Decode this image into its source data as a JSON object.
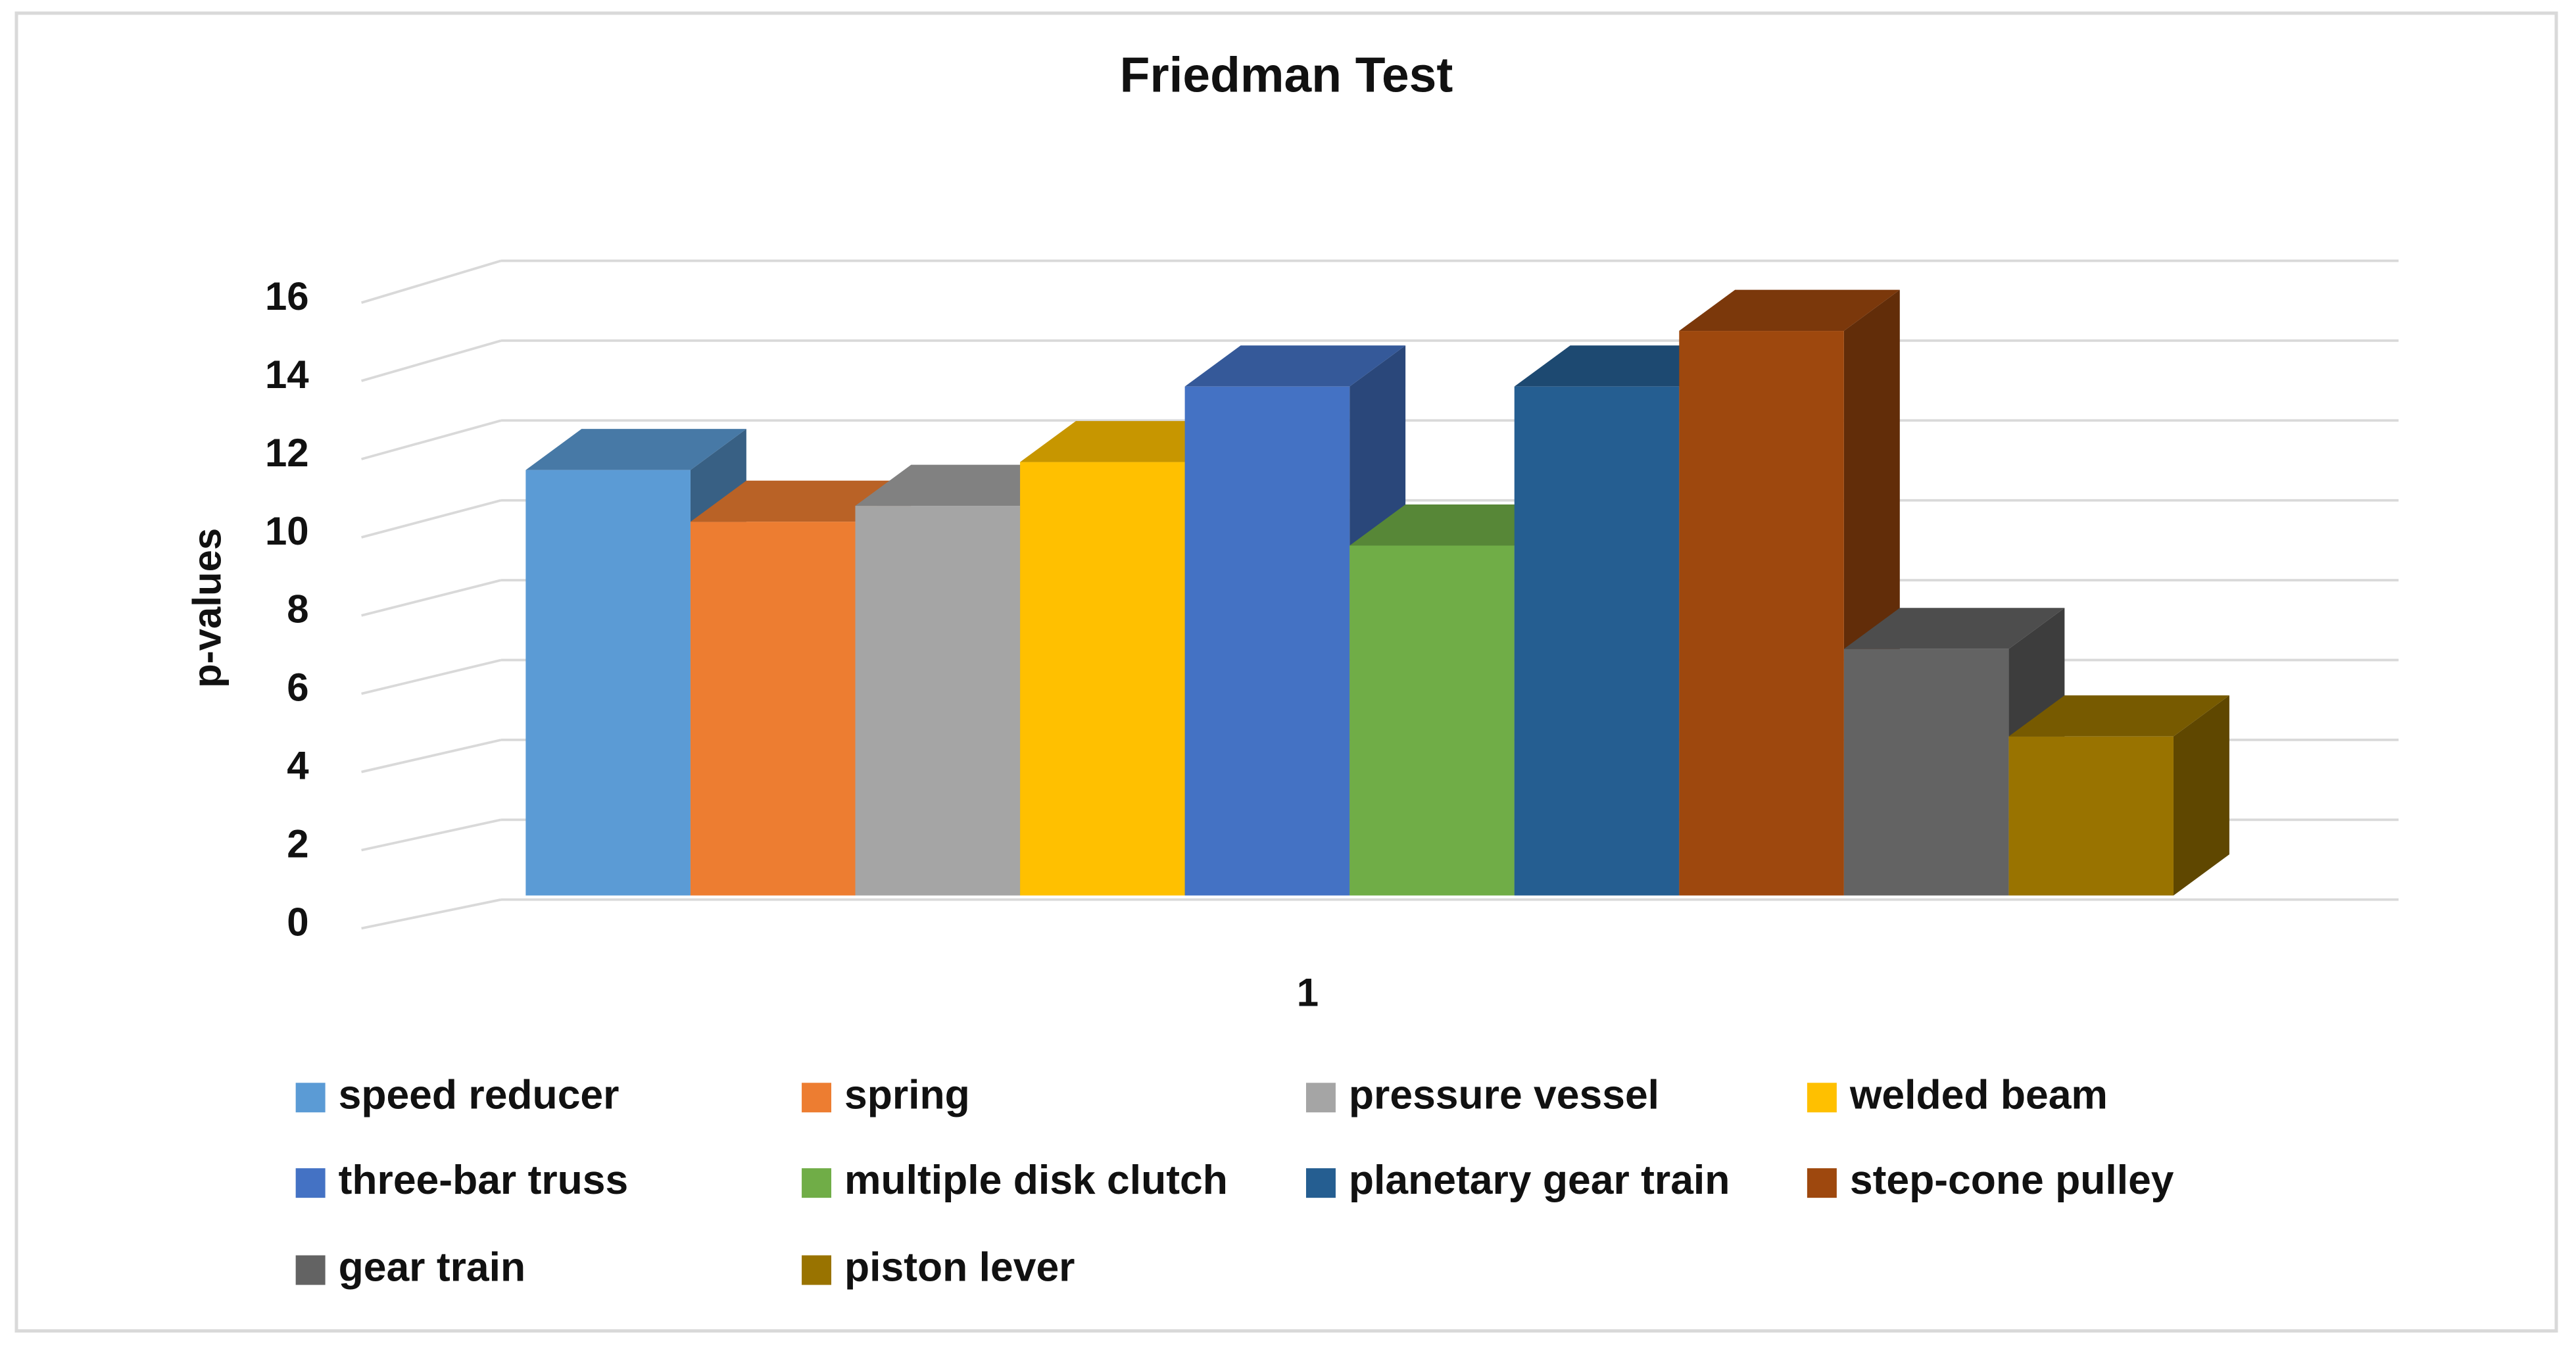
{
  "chart_data": {
    "type": "bar3d",
    "title": "Friedman Test",
    "y_label": "p-values",
    "categories": [
      "1"
    ],
    "series": [
      {
        "name": "speed reducer",
        "color": "#5b9bd5",
        "values": [
          10.7
        ]
      },
      {
        "name": "spring",
        "color": "#ed7d31",
        "values": [
          9.4
        ]
      },
      {
        "name": "pressure vessel",
        "color": "#a5a5a5",
        "values": [
          9.8
        ]
      },
      {
        "name": "welded beam",
        "color": "#ffc000",
        "values": [
          10.9
        ]
      },
      {
        "name": "three-bar truss",
        "color": "#4472c4",
        "values": [
          12.8
        ]
      },
      {
        "name": "multiple disk clutch",
        "color": "#70ad47",
        "values": [
          8.8
        ]
      },
      {
        "name": "planetary gear train",
        "color": "#255e91",
        "values": [
          12.8
        ]
      },
      {
        "name": "step-cone pulley",
        "color": "#9e480e",
        "values": [
          14.2
        ]
      },
      {
        "name": "gear train",
        "color": "#636363",
        "values": [
          6.2
        ]
      },
      {
        "name": "piston lever",
        "color": "#997300",
        "values": [
          4.0
        ]
      }
    ],
    "ylim": [
      0,
      16
    ],
    "yticks": [
      0,
      2,
      4,
      6,
      8,
      10,
      12,
      14,
      16
    ],
    "grid": true,
    "legend": "bottom"
  }
}
